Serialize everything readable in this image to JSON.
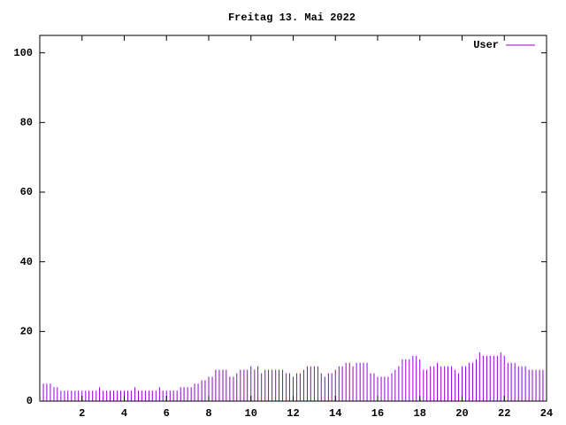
{
  "chart_data": {
    "type": "impulse",
    "title": "Freitag 13. Mai 2022",
    "series": [
      {
        "name": "User",
        "color": "#9400d3",
        "x": [
          0,
          0.17,
          0.33,
          0.5,
          0.67,
          0.83,
          1,
          1.17,
          1.33,
          1.5,
          1.67,
          1.83,
          2,
          2.17,
          2.33,
          2.5,
          2.67,
          2.83,
          3,
          3.17,
          3.33,
          3.5,
          3.67,
          3.83,
          4,
          4.17,
          4.33,
          4.5,
          4.67,
          4.83,
          5,
          5.17,
          5.33,
          5.5,
          5.67,
          5.83,
          6,
          6.17,
          6.33,
          6.5,
          6.67,
          6.83,
          7,
          7.17,
          7.33,
          7.5,
          7.67,
          7.83,
          8,
          8.17,
          8.33,
          8.5,
          8.67,
          8.83,
          9,
          9.17,
          9.33,
          9.5,
          9.67,
          9.83,
          10,
          10.17,
          10.33,
          10.5,
          10.67,
          10.83,
          11,
          11.17,
          11.33,
          11.5,
          11.67,
          11.83,
          12,
          12.17,
          12.33,
          12.5,
          12.67,
          12.83,
          13,
          13.17,
          13.33,
          13.5,
          13.67,
          13.83,
          14,
          14.17,
          14.33,
          14.5,
          14.67,
          14.83,
          15,
          15.17,
          15.33,
          15.5,
          15.67,
          15.83,
          16,
          16.17,
          16.33,
          16.5,
          16.67,
          16.83,
          17,
          17.17,
          17.33,
          17.5,
          17.67,
          17.83,
          18,
          18.17,
          18.33,
          18.5,
          18.67,
          18.83,
          19,
          19.17,
          19.33,
          19.5,
          19.67,
          19.83,
          20,
          20.17,
          20.33,
          20.5,
          20.67,
          20.83,
          21,
          21.17,
          21.33,
          21.5,
          21.67,
          21.83,
          22,
          22.17,
          22.33,
          22.5,
          22.67,
          22.83,
          23,
          23.17,
          23.33,
          23.5,
          23.67,
          23.83
        ],
        "values": [
          7,
          5,
          5,
          5,
          4,
          4,
          3,
          3,
          3,
          3,
          3,
          3,
          3,
          3,
          3,
          3,
          3,
          4,
          3,
          3,
          3,
          3,
          3,
          3,
          3,
          3,
          3,
          4,
          3,
          3,
          3,
          3,
          3,
          3,
          4,
          3,
          3,
          3,
          3,
          3,
          4,
          4,
          4,
          4,
          5,
          5,
          6,
          6,
          7,
          7,
          9,
          9,
          9,
          9,
          7,
          7,
          8,
          9,
          9,
          9,
          10,
          9,
          10,
          8,
          9,
          9,
          9,
          9,
          9,
          9,
          8,
          8,
          7,
          8,
          8,
          9,
          10,
          10,
          10,
          10,
          8,
          7,
          8,
          8,
          9,
          10,
          10,
          11,
          11,
          10,
          11,
          11,
          11,
          11,
          8,
          8,
          7,
          7,
          7,
          7,
          8,
          9,
          10,
          12,
          12,
          12,
          13,
          13,
          12,
          9,
          9,
          10,
          10,
          11,
          10,
          10,
          10,
          10,
          9,
          8,
          10,
          10,
          11,
          11,
          12,
          14,
          13,
          13,
          13,
          13,
          13,
          14,
          13,
          11,
          11,
          11,
          10,
          10,
          10,
          9,
          9,
          9,
          9,
          9
        ]
      }
    ],
    "xlim": [
      0,
      24
    ],
    "xticks": [
      2,
      4,
      6,
      8,
      10,
      12,
      14,
      16,
      18,
      20,
      22,
      24
    ],
    "ylim": [
      0,
      105
    ],
    "yticks": [
      0,
      20,
      40,
      60,
      80,
      100
    ],
    "grid": false,
    "legend": "top-right"
  }
}
